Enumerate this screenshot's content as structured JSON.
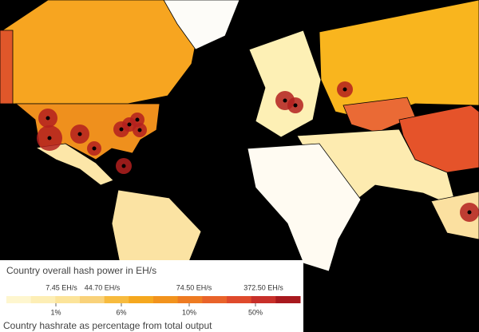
{
  "legend": {
    "title": "Country overall hash power in EH/s",
    "top_labels": [
      "7.45 EH/s",
      "44.70 EH/s",
      "74.50 EH/s",
      "372.50 EH/s"
    ],
    "bottom_labels": [
      "1%",
      "6%",
      "10%",
      "50%"
    ],
    "caption": "Country hashrate as percentage from total output"
  }
}
